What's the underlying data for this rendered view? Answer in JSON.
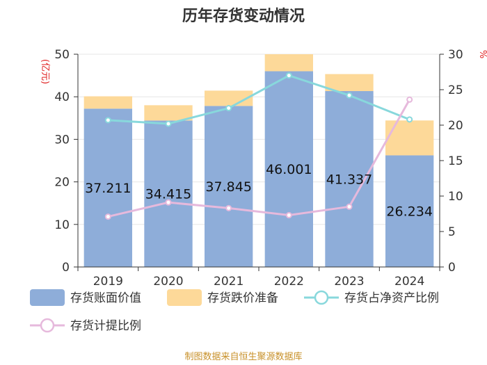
{
  "chart_data": {
    "type": "bar",
    "title": "历年存货变动情况",
    "categories": [
      "2019",
      "2020",
      "2021",
      "2022",
      "2023",
      "2024"
    ],
    "left_axis": {
      "unit": "(亿元)",
      "ylim": [
        0,
        50
      ],
      "ticks": [
        "0",
        "10",
        "20",
        "30",
        "40",
        "50"
      ]
    },
    "right_axis": {
      "unit": "%",
      "ylim": [
        0,
        30
      ],
      "ticks": [
        "0",
        "5",
        "10",
        "15",
        "20",
        "25",
        "30"
      ]
    },
    "series": [
      {
        "name": "存货账面价值",
        "kind": "bar",
        "axis": "left",
        "stack": "inventory",
        "color": "#8eadd9",
        "values": [
          37.211,
          34.415,
          37.845,
          46.001,
          41.337,
          26.234
        ],
        "labels": [
          "37.211",
          "34.415",
          "37.845",
          "46.001",
          "41.337",
          "26.234"
        ]
      },
      {
        "name": "存货跌价准备",
        "kind": "bar",
        "axis": "left",
        "stack": "inventory",
        "color": "#fdd999",
        "values": [
          2.9,
          3.6,
          3.6,
          4.0,
          4.0,
          8.2
        ]
      },
      {
        "name": "存货占净资产比例",
        "kind": "line",
        "axis": "right",
        "color": "#88d8dc",
        "values": [
          20.7,
          20.2,
          22.4,
          27.0,
          24.2,
          20.8
        ]
      },
      {
        "name": "存货计提比例",
        "kind": "line",
        "axis": "right",
        "color": "#e6b9dc",
        "values": [
          7.1,
          9.1,
          8.3,
          7.3,
          8.5,
          23.6
        ]
      }
    ],
    "grid": true,
    "legend": "bottom"
  },
  "source": "制图数据来自恒生聚源数据库"
}
